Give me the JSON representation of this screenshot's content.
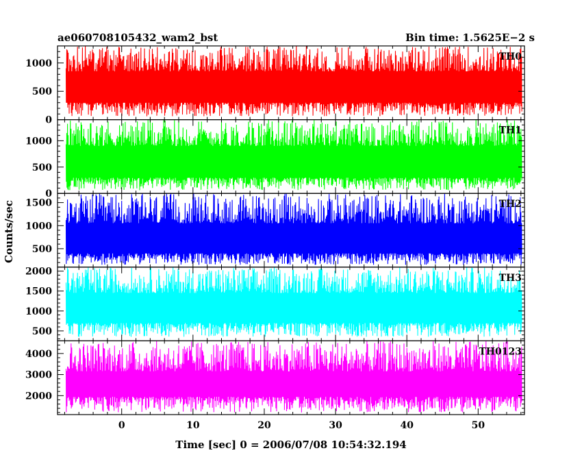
{
  "chart_data": {
    "type": "line",
    "title_left": "ae060708105432_wam2_bst",
    "title_right": "Bin time: 1.5625E−2 s",
    "ylabel": "Counts/sec",
    "xlabel": "Time [sec] 0 = 2006/07/08 10:54:32.194",
    "xlim": [
      -9,
      56.5
    ],
    "data_xrange": [
      -7.8,
      56.1
    ],
    "x_ticks": [
      0,
      10,
      20,
      30,
      40,
      50
    ],
    "x_tick_labels": [
      "0",
      "10",
      "20",
      "30",
      "40",
      "50"
    ],
    "grid": false,
    "panels": [
      {
        "label": "TH0",
        "color": "#ff0000",
        "ylim": [
          0,
          1300
        ],
        "y_ticks": [
          0,
          500,
          1000
        ],
        "y_tick_labels": [
          "0",
          "500",
          "1000"
        ],
        "signal": {
          "low": 60,
          "band_low": 300,
          "band_high": 850,
          "high": 1300
        }
      },
      {
        "label": "TH1",
        "color": "#00ff00",
        "ylim": [
          0,
          1400
        ],
        "y_ticks": [
          0,
          500,
          1000
        ],
        "y_tick_labels": [
          "0",
          "500",
          "1000"
        ],
        "signal": {
          "low": 60,
          "band_low": 300,
          "band_high": 900,
          "high": 1400
        }
      },
      {
        "label": "TH2",
        "color": "#0000ff",
        "ylim": [
          100,
          1700
        ],
        "y_ticks": [
          500,
          1000,
          1500
        ],
        "y_tick_labels": [
          "500",
          "1000",
          "1500"
        ],
        "signal": {
          "low": 150,
          "band_low": 400,
          "band_high": 1050,
          "high": 1700
        }
      },
      {
        "label": "TH3",
        "color": "#00ffff",
        "ylim": [
          250,
          2100
        ],
        "y_ticks": [
          500,
          1000,
          1500,
          2000
        ],
        "y_tick_labels": [
          "500",
          "1000",
          "1500",
          "2000"
        ],
        "signal": {
          "low": 350,
          "band_low": 700,
          "band_high": 1450,
          "high": 2100
        }
      },
      {
        "label": "TH0123",
        "color": "#ff00ff",
        "ylim": [
          1100,
          4600
        ],
        "y_ticks": [
          2000,
          3000,
          4000
        ],
        "y_tick_labels": [
          "2000",
          "3000",
          "4000"
        ],
        "signal": {
          "low": 1200,
          "band_low": 1950,
          "band_high": 3150,
          "high": 4600
        }
      }
    ]
  }
}
